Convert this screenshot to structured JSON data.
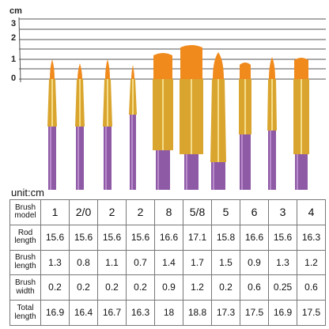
{
  "ruler": {
    "unit": "cm",
    "labels": [
      "3",
      "2",
      "1",
      "0"
    ]
  },
  "unit_label": "unit:cm",
  "table": {
    "rows": [
      [
        "Brush model",
        "1",
        "2/0",
        "2",
        "2",
        "8",
        "5/8",
        "5",
        "6",
        "3",
        "4"
      ],
      [
        "Rod length",
        "15.6",
        "15.6",
        "15.6",
        "15.6",
        "16.6",
        "17.1",
        "15.8",
        "16.6",
        "15.6",
        "16.3"
      ],
      [
        "Brush length",
        "1.3",
        "0.8",
        "1.1",
        "0.7",
        "1.4",
        "1.7",
        "1.5",
        "0.9",
        "1.3",
        "1.2"
      ],
      [
        "Brush width",
        "0.2",
        "0.2",
        "0.2",
        "0.2",
        "0.9",
        "1.2",
        "0.2",
        "0.6",
        "0.25",
        "0.6"
      ],
      [
        "Total length",
        "16.9",
        "16.4",
        "16.7",
        "16.3",
        "18",
        "18.8",
        "17.3",
        "17.5",
        "16.9",
        "17.5"
      ]
    ]
  }
}
